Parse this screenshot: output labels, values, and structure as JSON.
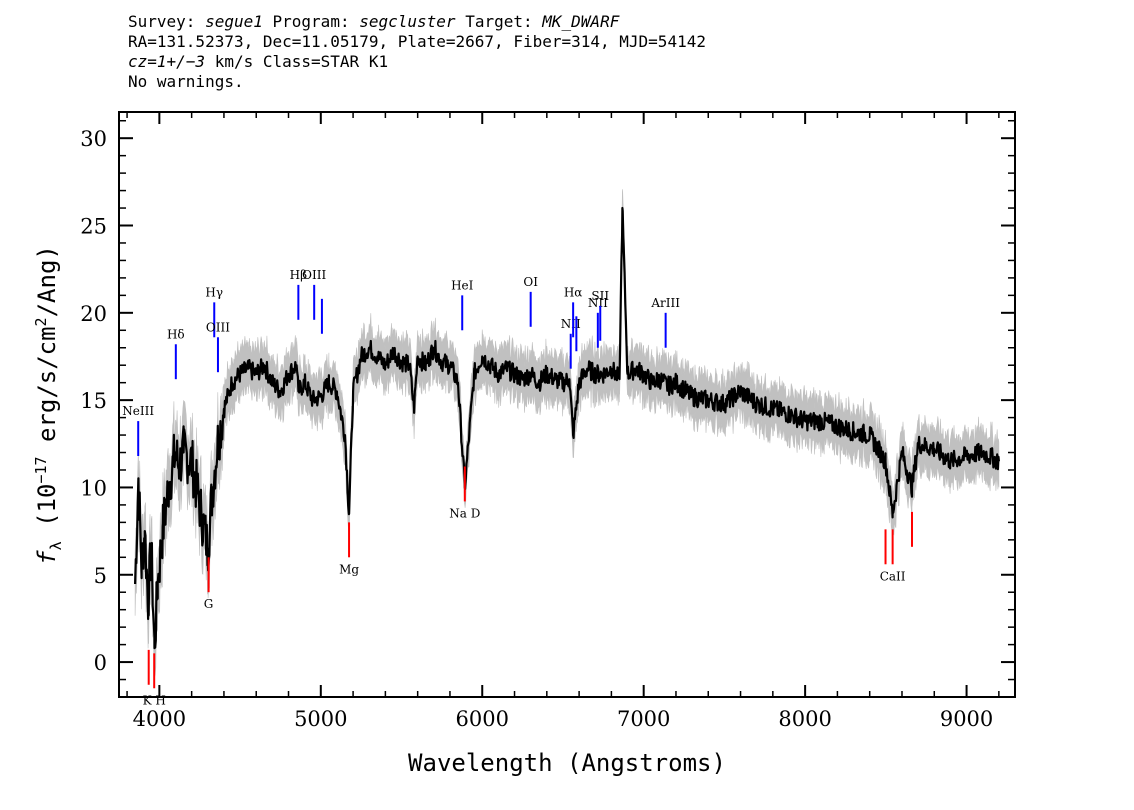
{
  "header": {
    "line1": {
      "survey_label": "Survey:",
      "survey": "segue1",
      "program_label": "Program:",
      "program": "segcluster",
      "target_label": "Target:",
      "target": "MK_DWARF"
    },
    "line2": "RA=131.52373, Dec=11.05179, Plate=2667, Fiber=314, MJD=54142",
    "line3": {
      "cz": "cz=1+/−3",
      "rest": " km/s Class=STAR K1"
    },
    "line4": "No warnings."
  },
  "chart_data": {
    "type": "line",
    "xlabel": "Wavelength (Angstroms)",
    "ylabel_parts": [
      "f",
      "λ",
      " (10",
      "−17",
      " erg/s/cm",
      "2",
      "/Ang)"
    ],
    "xlim": [
      3750,
      9300
    ],
    "ylim": [
      -2,
      31.5
    ],
    "xticks": [
      4000,
      5000,
      6000,
      7000,
      8000,
      9000
    ],
    "yticks": [
      0,
      5,
      10,
      15,
      20,
      25,
      30
    ],
    "colors": {
      "spectrum": "#000000",
      "error": "#c0c0c0",
      "emission": "#0000ff",
      "absorption": "#ff0000"
    },
    "series": [
      {
        "x": [
          3850,
          3870,
          3890,
          3910,
          3930,
          3950,
          3970,
          3990,
          4020,
          4060,
          4100,
          4120,
          4150,
          4200,
          4250,
          4300,
          4330,
          4360,
          4400,
          4450,
          4500,
          4550,
          4600,
          4650,
          4700,
          4750,
          4800,
          4850,
          4861,
          4900,
          4950,
          5000,
          5050,
          5100,
          5150,
          5175,
          5200,
          5250,
          5300,
          5350,
          5400,
          5450,
          5500,
          5550,
          5577,
          5600,
          5650,
          5700,
          5750,
          5800,
          5850,
          5892,
          5950,
          6000,
          6050,
          6100,
          6150,
          6200,
          6250,
          6300,
          6350,
          6400,
          6450,
          6500,
          6540,
          6563,
          6600,
          6650,
          6700,
          6750,
          6800,
          6850,
          6868,
          6900,
          6950,
          7000,
          7050,
          7100,
          7150,
          7200,
          7300,
          7400,
          7500,
          7600,
          7700,
          7800,
          7900,
          8000,
          8100,
          8200,
          8300,
          8400,
          8498,
          8542,
          8600,
          8662,
          8700,
          8800,
          8900,
          9000,
          9100,
          9200
        ],
        "y": [
          4.5,
          10.5,
          5.5,
          7.5,
          3.5,
          6.5,
          0.8,
          4.5,
          7.5,
          10.2,
          12.0,
          11.2,
          12.0,
          11.5,
          9.0,
          6.5,
          10.0,
          12.5,
          14.5,
          16.0,
          16.5,
          16.8,
          16.5,
          17.0,
          16.0,
          15.5,
          16.5,
          17.0,
          15.5,
          16.0,
          15.0,
          15.2,
          16.0,
          15.5,
          13.0,
          8.5,
          15.5,
          17.5,
          18.0,
          17.5,
          17.0,
          17.8,
          17.2,
          17.0,
          14.5,
          17.5,
          17.0,
          18.0,
          17.2,
          17.0,
          16.0,
          10.0,
          16.5,
          17.5,
          17.0,
          16.5,
          16.8,
          16.5,
          16.2,
          16.5,
          16.0,
          16.5,
          16.2,
          16.0,
          16.2,
          13.0,
          16.0,
          16.8,
          16.5,
          16.5,
          16.8,
          16.2,
          26.0,
          16.5,
          16.8,
          16.5,
          16.0,
          16.2,
          15.8,
          16.0,
          15.2,
          15.0,
          14.8,
          15.5,
          14.8,
          14.5,
          14.2,
          13.8,
          13.8,
          13.5,
          13.2,
          13.0,
          11.5,
          8.5,
          12.0,
          10.0,
          12.5,
          12.2,
          11.5,
          11.8,
          12.0,
          11.5
        ]
      }
    ],
    "emission_lines": [
      {
        "label": "NeIII",
        "x": 3869,
        "y0": 11.8,
        "y1": 13.8
      },
      {
        "label": "Hδ",
        "x": 4102,
        "y0": 16.2,
        "y1": 18.2
      },
      {
        "label": "Hγ",
        "x": 4340,
        "y0": 18.6,
        "y1": 20.6
      },
      {
        "label": "OIII",
        "x": 4363,
        "y0": 16.6,
        "y1": 18.6
      },
      {
        "label": "Hβ",
        "x": 4861,
        "y0": 19.6,
        "y1": 21.6
      },
      {
        "label": "OIII",
        "x": 4959,
        "y0": 19.6,
        "y1": 21.6
      },
      {
        "label": "",
        "x": 5007,
        "y0": 18.8,
        "y1": 20.8
      },
      {
        "label": "HeI",
        "x": 5876,
        "y0": 19.0,
        "y1": 21.0
      },
      {
        "label": "OI",
        "x": 6300,
        "y0": 19.2,
        "y1": 21.2
      },
      {
        "label": "NII",
        "x": 6548,
        "y0": 16.8,
        "y1": 18.8
      },
      {
        "label": "Hα",
        "x": 6563,
        "y0": 18.6,
        "y1": 20.6
      },
      {
        "label": "",
        "x": 6583,
        "y0": 17.8,
        "y1": 19.8
      },
      {
        "label": "NII",
        "x": 6716,
        "y0": 18.0,
        "y1": 20.0
      },
      {
        "label": "SII",
        "x": 6731,
        "y0": 18.4,
        "y1": 20.4
      },
      {
        "label": "ArIII",
        "x": 7136,
        "y0": 18.0,
        "y1": 20.0
      }
    ],
    "absorption_lines": [
      {
        "label": "",
        "x": 3934,
        "y0": -1.3,
        "y1": 0.7
      },
      {
        "label": "K H",
        "x": 3968,
        "y0": -1.5,
        "y1": 0.5
      },
      {
        "label": "G",
        "x": 4305,
        "y0": 4.0,
        "y1": 6.0
      },
      {
        "label": "Mg",
        "x": 5175,
        "y0": 6.0,
        "y1": 8.0
      },
      {
        "label": "Na D",
        "x": 5892,
        "y0": 9.2,
        "y1": 11.2
      },
      {
        "label": "",
        "x": 8498,
        "y0": 5.6,
        "y1": 7.6
      },
      {
        "label": "CaII",
        "x": 8542,
        "y0": 5.6,
        "y1": 7.6
      },
      {
        "label": "",
        "x": 8662,
        "y0": 6.6,
        "y1": 8.6
      }
    ]
  }
}
